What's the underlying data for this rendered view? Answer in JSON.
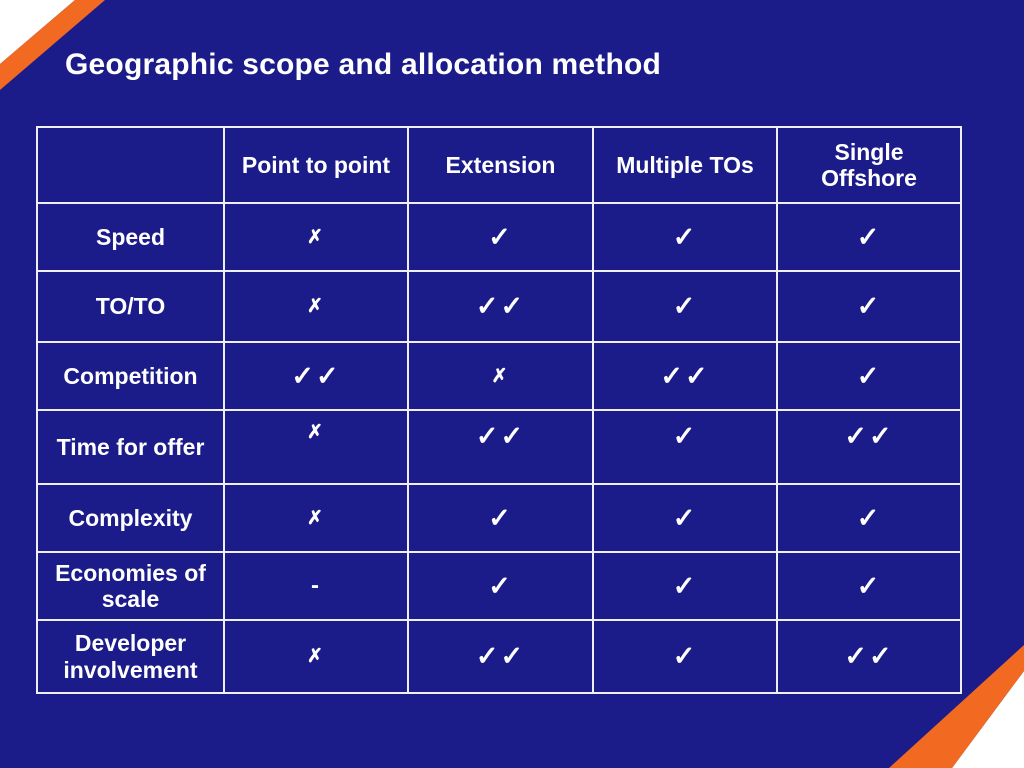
{
  "slide": {
    "title": "Geographic scope and allocation method"
  },
  "colors": {
    "background": "#1B1B8A",
    "accent_orange": "#F26A22",
    "text": "#FFFFFF",
    "table_border": "#EFEFF8",
    "corner_white": "#FFFFFF"
  },
  "chart_data": {
    "type": "table",
    "title": "Geographic scope and allocation method",
    "columns": [
      "",
      "Point to point",
      "Extension",
      "Multiple TOs",
      "Single Offshore"
    ],
    "rows": [
      {
        "label": "Speed",
        "values": [
          "✗",
          "✓",
          "✓",
          "✓"
        ]
      },
      {
        "label": "TO/TO",
        "values": [
          "✗",
          "✓✓",
          "✓",
          "✓"
        ]
      },
      {
        "label": "Competition",
        "values": [
          "✓✓",
          "✗",
          "✓✓",
          "✓"
        ]
      },
      {
        "label": "Time for offer",
        "values": [
          "✗",
          "✓✓",
          "✓",
          "✓✓"
        ]
      },
      {
        "label": "Complexity",
        "values": [
          "✗",
          "✓",
          "✓",
          "✓"
        ]
      },
      {
        "label": "Economies of scale",
        "values": [
          "-",
          "✓",
          "✓",
          "✓"
        ]
      },
      {
        "label": "Developer involvement",
        "values": [
          "✗",
          "✓✓",
          "✓",
          "✓✓"
        ]
      }
    ]
  }
}
